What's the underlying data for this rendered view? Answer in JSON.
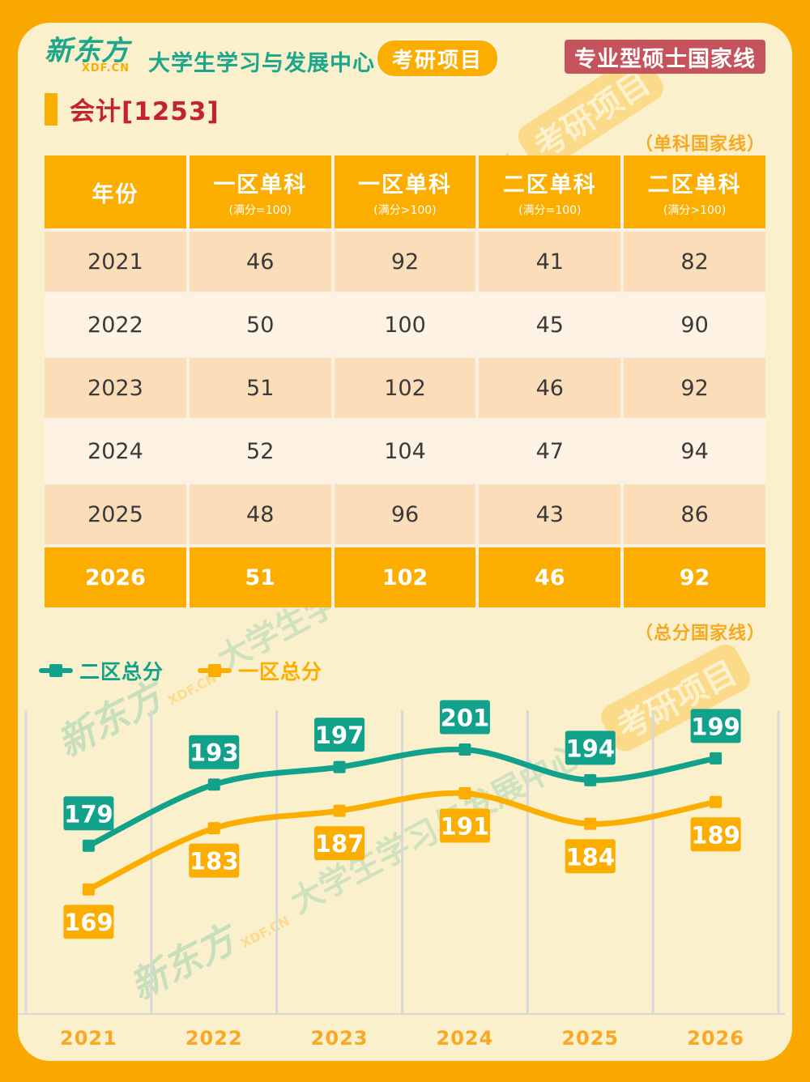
{
  "header": {
    "logo_text": "新东方",
    "logo_sub": "XDF.CN",
    "center_text": "大学生学习与发展中心 |",
    "project_badge": "考研项目",
    "right_badge": "专业型硕士国家线"
  },
  "title": "会计[1253]",
  "table": {
    "section_label": "（单科国家线）",
    "columns": [
      {
        "label": "年份",
        "sub": ""
      },
      {
        "label": "一区单科",
        "sub": "(满分=100)"
      },
      {
        "label": "一区单科",
        "sub": "(满分>100)"
      },
      {
        "label": "二区单科",
        "sub": "(满分=100)"
      },
      {
        "label": "二区单科",
        "sub": "(满分>100)"
      }
    ],
    "rows": [
      {
        "year": "2021",
        "values": [
          "46",
          "92",
          "41",
          "82"
        ],
        "highlight": false
      },
      {
        "year": "2022",
        "values": [
          "50",
          "100",
          "45",
          "90"
        ],
        "highlight": false
      },
      {
        "year": "2023",
        "values": [
          "51",
          "102",
          "46",
          "92"
        ],
        "highlight": false
      },
      {
        "year": "2024",
        "values": [
          "52",
          "104",
          "47",
          "94"
        ],
        "highlight": false
      },
      {
        "year": "2025",
        "values": [
          "48",
          "96",
          "43",
          "86"
        ],
        "highlight": false
      },
      {
        "year": "2026",
        "values": [
          "51",
          "102",
          "46",
          "92"
        ],
        "highlight": true
      }
    ]
  },
  "chart": {
    "section_label": "（总分国家线）"
  },
  "chart_data": {
    "type": "line",
    "title": "总分国家线",
    "categories": [
      "2021",
      "2022",
      "2023",
      "2024",
      "2025",
      "2026"
    ],
    "series": [
      {
        "name": "一区总分",
        "values": [
          169,
          183,
          187,
          191,
          184,
          189
        ],
        "color": "#FBAD00",
        "label_position": "below"
      },
      {
        "name": "二区总分",
        "values": [
          179,
          193,
          197,
          201,
          194,
          199
        ],
        "color": "#12A28B",
        "label_position": "above"
      }
    ],
    "legend_order": [
      "二区总分",
      "一区总分"
    ],
    "xlabel": "",
    "ylabel": "",
    "ylim": [
      140.5,
      210
    ],
    "grid": "vertical",
    "legend_position": "top-left"
  },
  "watermark": {
    "brand": "新东方",
    "brand_sub": "XDF.CN",
    "text": "大学生学习与发展中心 |",
    "badge": "考研项目"
  },
  "colors": {
    "accent_orange": "#FBAD00",
    "accent_teal": "#12A28B",
    "title_red": "#C2242E",
    "badge_red": "#C5535B",
    "frame_orange": "#F9A802",
    "card_bg": "#FBF0CC",
    "row_peach": "#FBDDBA",
    "row_cream": "#FDF2E3",
    "gridline": "#D8D8DC",
    "axis_label_orange": "#F9A826"
  }
}
